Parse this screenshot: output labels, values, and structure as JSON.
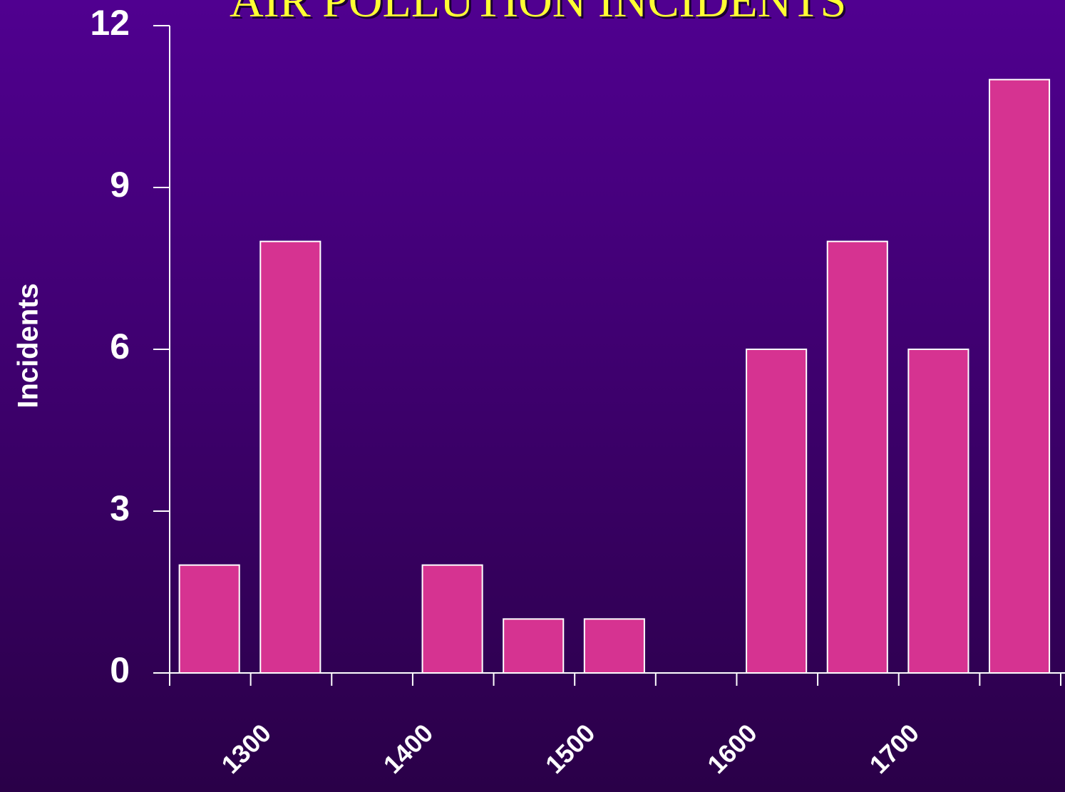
{
  "chart_data": {
    "type": "histogram",
    "title": "AIR POLLUTION INCIDENTS",
    "ylabel": "Incidents",
    "bins": [
      1250,
      1300,
      1350,
      1400,
      1450,
      1500,
      1550,
      1600,
      1650,
      1700,
      1750,
      1800
    ],
    "values": [
      2,
      8,
      0,
      2,
      1,
      1,
      0,
      6,
      8,
      6,
      11
    ],
    "color": "#d63391",
    "xlim": [
      1250,
      1800
    ],
    "xticks": [
      1300,
      1400,
      1500,
      1600,
      1700
    ],
    "ylim": [
      0,
      12
    ],
    "yticks": [
      0,
      3,
      6,
      9,
      12
    ]
  }
}
